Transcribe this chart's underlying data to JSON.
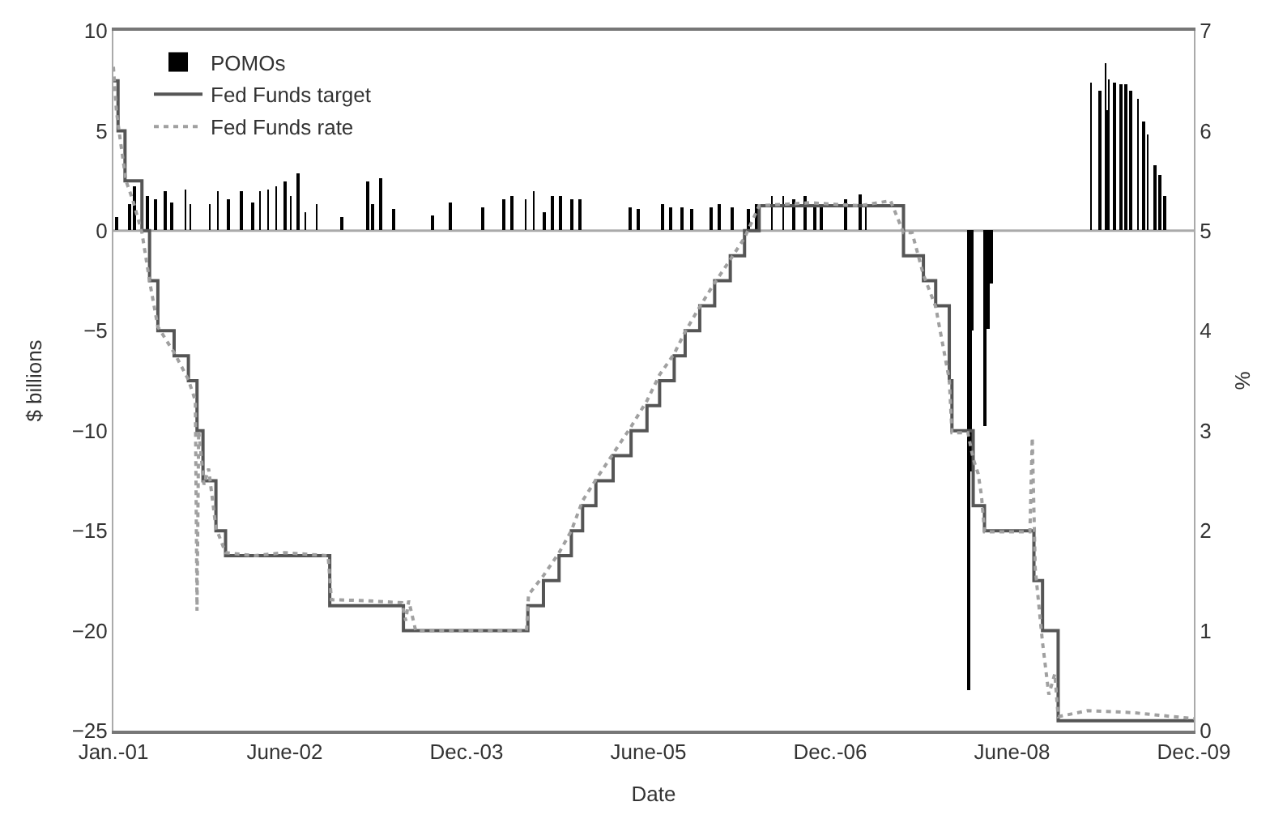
{
  "chart_data": {
    "type": "bar",
    "xlabel": "Date",
    "ylabel": "$ billions",
    "y2label": "%",
    "legend": "top left",
    "grid": false,
    "xlim": [
      "2001-01-01",
      "2009-12-01"
    ],
    "xticks": [
      {
        "value": "2001-01-01",
        "label": "Jan.-01"
      },
      {
        "value": "2002-06-01",
        "label": "June-02"
      },
      {
        "value": "2003-12-01",
        "label": "Dec.-03"
      },
      {
        "value": "2005-06-01",
        "label": "June-05"
      },
      {
        "value": "2006-12-01",
        "label": "Dec.-06"
      },
      {
        "value": "2008-06-01",
        "label": "June-08"
      },
      {
        "value": "2009-12-01",
        "label": "Dec.-09"
      }
    ],
    "ylim": [
      -25,
      10
    ],
    "yticks": [
      {
        "value": -25,
        "label": "−25"
      },
      {
        "value": -20,
        "label": "−20"
      },
      {
        "value": -15,
        "label": "−15"
      },
      {
        "value": -10,
        "label": "−10"
      },
      {
        "value": -5,
        "label": "−5"
      },
      0,
      5,
      10
    ],
    "ref_lines": [
      {
        "axis": "y",
        "value": 0,
        "color": "#aaaaaa"
      }
    ],
    "y2lim": [
      0,
      7
    ],
    "y2ticks": [
      0,
      1,
      2,
      3,
      4,
      5,
      6,
      7
    ],
    "series": [
      {
        "name": "POMOs",
        "color": "#000000",
        "x": [
          "2001-01-10",
          "2001-02-18",
          "2001-03-04",
          "2001-04-15",
          "2001-05-07",
          "2001-06-06",
          "2001-06-25",
          "2001-08-06",
          "2001-08-21",
          "2001-10-18",
          "2001-11-12",
          "2001-12-12",
          "2002-01-22",
          "2002-02-25",
          "2002-03-19",
          "2002-04-12",
          "2002-05-06",
          "2002-06-03",
          "2002-06-19",
          "2002-07-10",
          "2002-08-03",
          "2002-09-06",
          "2002-11-22",
          "2003-02-06",
          "2003-02-22",
          "2003-03-16",
          "2003-04-27",
          "2003-08-22",
          "2003-10-13",
          "2004-01-19",
          "2004-03-22",
          "2004-04-16",
          "2004-05-28",
          "2004-06-21",
          "2004-07-22",
          "2004-08-16",
          "2004-09-09",
          "2004-10-12",
          "2004-11-06",
          "2005-04-07",
          "2005-05-01",
          "2005-07-13",
          "2005-08-07",
          "2005-09-09",
          "2005-10-10",
          "2005-12-07",
          "2006-01-01",
          "2006-02-10",
          "2006-03-28",
          "2006-04-22",
          "2006-06-09",
          "2006-07-12",
          "2006-08-13",
          "2006-09-15",
          "2006-10-16",
          "2006-11-03",
          "2007-01-15",
          "2007-03-01",
          "2007-03-18",
          "2008-01-22",
          "2008-01-27",
          "2008-02-01",
          "2008-03-10",
          "2008-03-20",
          "2008-03-30",
          "2009-01-25",
          "2009-02-20",
          "2009-03-10",
          "2009-03-15",
          "2009-03-20",
          "2009-04-05",
          "2009-04-25",
          "2009-05-10",
          "2009-05-25",
          "2009-06-15",
          "2009-07-01",
          "2009-07-15",
          "2009-08-05",
          "2009-08-20",
          "2009-09-05"
        ],
        "values": [
          0.7,
          1.3,
          2.2,
          1.7,
          1.6,
          2.0,
          1.4,
          2.1,
          1.3,
          1.3,
          2.0,
          1.6,
          2.0,
          1.4,
          2.0,
          2.1,
          2.2,
          2.5,
          1.7,
          2.9,
          0.9,
          1.3,
          0.7,
          2.5,
          1.3,
          2.6,
          1.1,
          0.8,
          1.4,
          1.2,
          1.6,
          1.7,
          1.6,
          2.0,
          0.9,
          1.7,
          1.7,
          1.6,
          1.6,
          1.2,
          1.1,
          1.3,
          1.2,
          1.2,
          1.1,
          1.2,
          1.3,
          1.2,
          1.1,
          1.3,
          1.7,
          1.7,
          1.6,
          1.7,
          1.3,
          1.3,
          1.6,
          1.8,
          1.3,
          -23,
          -12,
          -5,
          -9.8,
          -4.9,
          -2.6,
          7.4,
          7.0,
          8.4,
          6.0,
          7.6,
          7.4,
          7.3,
          7.3,
          7.0,
          6.6,
          5.5,
          4.8,
          3.3,
          2.8,
          1.7
        ]
      },
      {
        "name": "Fed Funds target",
        "type": "step",
        "axis": "y2",
        "color": "#555555",
        "line_style": "solid",
        "x": [
          "2001-01-01",
          "2001-01-15",
          "2001-02-05",
          "2001-03-28",
          "2001-04-20",
          "2001-05-15",
          "2001-07-03",
          "2001-08-15",
          "2001-09-10",
          "2001-09-28",
          "2001-11-06",
          "2001-12-05",
          "2002-10-15",
          "2003-05-25",
          "2004-06-03",
          "2004-07-20",
          "2004-09-05",
          "2004-10-12",
          "2004-11-15",
          "2004-12-25",
          "2005-02-15",
          "2005-04-10",
          "2005-05-28",
          "2005-07-05",
          "2005-08-18",
          "2005-09-20",
          "2005-11-03",
          "2005-12-18",
          "2006-02-03",
          "2006-03-18",
          "2006-05-01",
          "2007-07-10",
          "2007-09-08",
          "2007-10-15",
          "2007-11-25",
          "2007-12-03",
          "2008-02-05",
          "2008-03-10",
          "2008-08-06",
          "2008-09-01",
          "2008-10-18",
          "2009-12-01"
        ],
        "values": [
          6.5,
          6.0,
          5.5,
          5.0,
          4.5,
          4.0,
          3.75,
          3.5,
          3.0,
          2.5,
          2.0,
          1.75,
          1.25,
          1.0,
          1.25,
          1.5,
          1.75,
          2.0,
          2.25,
          2.5,
          2.75,
          3.0,
          3.25,
          3.5,
          3.75,
          4.0,
          4.25,
          4.5,
          4.75,
          5.0,
          5.25,
          4.75,
          4.5,
          4.25,
          3.5,
          3.0,
          2.25,
          2.0,
          1.5,
          1.0,
          0.1,
          0.1
        ]
      },
      {
        "name": "Fed Funds rate",
        "type": "line",
        "axis": "y2",
        "color": "#a0a0a0",
        "line_style": "dotted",
        "x": [
          "2001-01-01",
          "2001-01-10",
          "2001-01-20",
          "2001-02-08",
          "2001-03-01",
          "2001-03-28",
          "2001-04-22",
          "2001-05-15",
          "2001-07-05",
          "2001-08-15",
          "2001-09-05",
          "2001-09-10",
          "2001-09-15",
          "2001-10-01",
          "2001-10-15",
          "2001-11-06",
          "2001-12-05",
          "2002-03-01",
          "2002-06-01",
          "2002-10-10",
          "2002-10-20",
          "2003-02-01",
          "2003-05-20",
          "2003-06-01",
          "2003-06-10",
          "2003-07-01",
          "2004-01-01",
          "2004-05-30",
          "2004-06-05",
          "2004-07-20",
          "2004-09-05",
          "2004-10-12",
          "2004-11-15",
          "2004-12-25",
          "2005-02-15",
          "2005-04-10",
          "2005-05-28",
          "2005-07-05",
          "2005-08-18",
          "2005-09-20",
          "2005-11-03",
          "2005-12-18",
          "2006-02-03",
          "2006-03-18",
          "2006-05-01",
          "2006-10-01",
          "2007-03-01",
          "2007-06-01",
          "2007-07-10",
          "2007-08-05",
          "2007-09-08",
          "2007-10-15",
          "2007-11-25",
          "2007-12-03",
          "2008-01-20",
          "2008-02-05",
          "2008-02-20",
          "2008-03-01",
          "2008-03-10",
          "2008-07-25",
          "2008-08-01",
          "2008-08-10",
          "2008-09-01",
          "2008-09-20",
          "2008-10-08",
          "2008-10-18",
          "2009-01-15",
          "2009-06-01",
          "2009-12-01"
        ],
        "values": [
          6.64,
          6.2,
          5.95,
          5.5,
          5.3,
          4.98,
          4.46,
          4.04,
          3.77,
          3.51,
          3.3,
          1.2,
          3.0,
          2.46,
          2.62,
          2.03,
          1.78,
          1.75,
          1.78,
          1.75,
          1.31,
          1.3,
          1.28,
          1.1,
          1.3,
          1.0,
          1.0,
          1.0,
          1.36,
          1.55,
          1.78,
          2.0,
          2.3,
          2.51,
          2.77,
          3.04,
          3.3,
          3.56,
          3.77,
          3.99,
          4.24,
          4.48,
          4.71,
          4.93,
          5.25,
          5.28,
          5.25,
          5.3,
          4.98,
          4.98,
          4.56,
          4.24,
          3.51,
          2.98,
          2.98,
          2.72,
          2.57,
          2.35,
          1.99,
          1.99,
          2.93,
          1.62,
          0.88,
          0.36,
          0.57,
          0.14,
          0.2,
          0.18,
          0.12
        ]
      }
    ]
  }
}
